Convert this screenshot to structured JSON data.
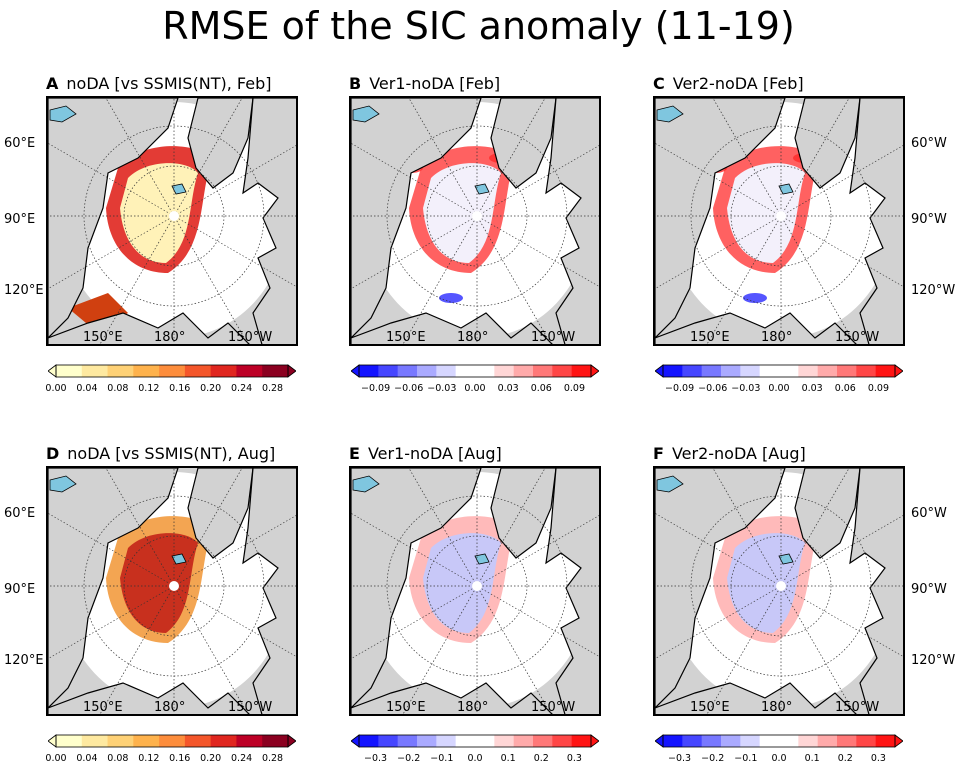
{
  "title": "RMSE of the SIC anomaly (11-19)",
  "colors": {
    "land": "#d2d2d2",
    "ocean_lake": "#7fc6df",
    "neutral": "#ffffff"
  },
  "panels": [
    {
      "letter": "A",
      "label": "noDA [vs SSMIS(NT), Feb]",
      "scale": "sequential",
      "lat_left": [
        "60°E",
        "90°E",
        "120°E"
      ],
      "lat_right": [],
      "lon": [
        "150°E",
        "180°",
        "150°W"
      ]
    },
    {
      "letter": "B",
      "label": "Ver1-noDA [Feb]",
      "scale": "diverging",
      "lat_left": [],
      "lat_right": [],
      "lon": [
        "150°E",
        "180°",
        "150°W"
      ]
    },
    {
      "letter": "C",
      "label": "Ver2-noDA [Feb]",
      "scale": "diverging",
      "lat_left": [],
      "lat_right": [
        "60°W",
        "90°W",
        "120°W"
      ],
      "lon": [
        "150°E",
        "180°",
        "150°W"
      ]
    },
    {
      "letter": "D",
      "label": "noDA [vs SSMIS(NT), Aug]",
      "scale": "sequential",
      "lat_left": [
        "60°E",
        "90°E",
        "120°E"
      ],
      "lat_right": [],
      "lon": [
        "150°E",
        "180°",
        "150°W"
      ]
    },
    {
      "letter": "E",
      "label": "Ver1-noDA [Aug]",
      "scale": "diverging",
      "lat_left": [],
      "lat_right": [],
      "lon": [
        "150°E",
        "180°",
        "150°W"
      ]
    },
    {
      "letter": "F",
      "label": "Ver2-noDA [Aug]",
      "scale": "diverging",
      "lat_left": [],
      "lat_right": [
        "60°W",
        "90°W",
        "120°W"
      ],
      "lon": [
        "150°E",
        "180°",
        "150°W"
      ]
    }
  ],
  "colorbars": [
    {
      "id": "A",
      "type": "sequential",
      "ticks": [
        "0.00",
        "0.04",
        "0.08",
        "0.12",
        "0.16",
        "0.20",
        "0.24",
        "0.28"
      ],
      "range": [
        0,
        0.3
      ]
    },
    {
      "id": "B",
      "type": "diverging",
      "ticks": [
        "−0.09",
        "−0.06",
        "−0.03",
        "0.00",
        "0.03",
        "0.06",
        "0.09"
      ],
      "range": [
        -0.105,
        0.105
      ]
    },
    {
      "id": "C",
      "type": "diverging",
      "ticks": [
        "−0.09",
        "−0.06",
        "−0.03",
        "0.00",
        "0.03",
        "0.06",
        "0.09"
      ],
      "range": [
        -0.105,
        0.105
      ]
    },
    {
      "id": "D",
      "type": "sequential",
      "ticks": [
        "0.00",
        "0.04",
        "0.08",
        "0.12",
        "0.16",
        "0.20",
        "0.24",
        "0.28"
      ],
      "range": [
        0,
        0.3
      ]
    },
    {
      "id": "E",
      "type": "diverging",
      "ticks": [
        "−0.3",
        "−0.2",
        "−0.1",
        "0.0",
        "0.1",
        "0.2",
        "0.3"
      ],
      "range": [
        -0.35,
        0.35
      ]
    },
    {
      "id": "F",
      "type": "diverging",
      "ticks": [
        "−0.3",
        "−0.2",
        "−0.1",
        "0.0",
        "0.1",
        "0.2",
        "0.3"
      ],
      "range": [
        -0.35,
        0.35
      ]
    }
  ]
}
